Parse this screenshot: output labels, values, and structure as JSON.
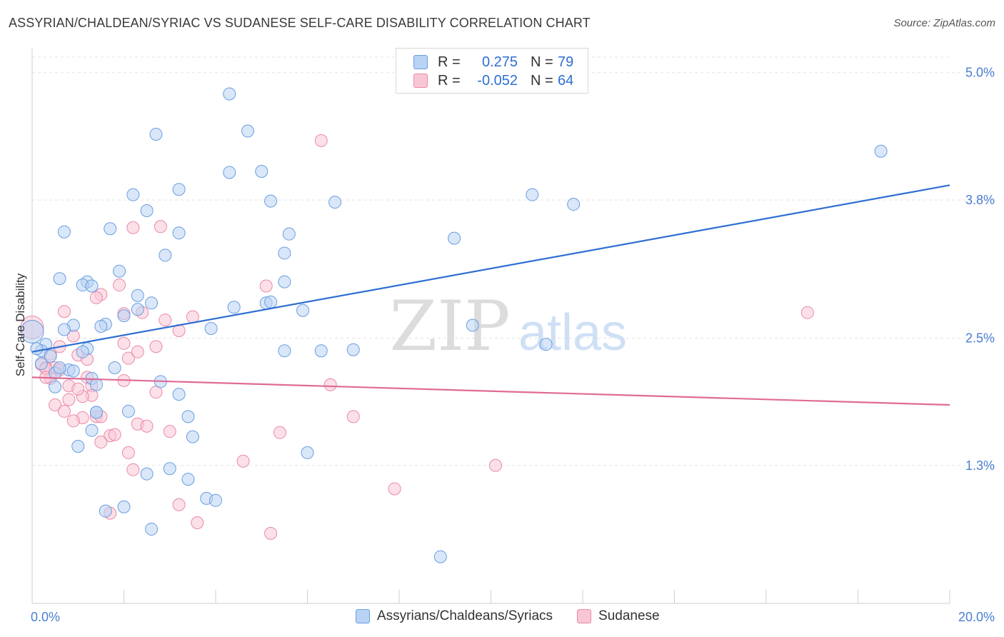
{
  "title": "ASSYRIAN/CHALDEAN/SYRIAC VS SUDANESE SELF-CARE DISABILITY CORRELATION CHART",
  "source": "Source: ZipAtlas.com",
  "watermark": {
    "zip": "ZIP",
    "atlas": "atlas"
  },
  "legend": {
    "r_label": "R =",
    "n_label": "N =",
    "blue": {
      "r": "0.275",
      "n": "79"
    },
    "pink": {
      "r": "-0.052",
      "n": "64"
    }
  },
  "colors": {
    "blue_fill": "#b9d3f4",
    "blue_stroke": "#6a9ee0",
    "blue_line": "#2f6fd1",
    "pink_fill": "#f9c6d5",
    "pink_stroke": "#e98aa8",
    "pink_line": "#e06b95",
    "tick_text": "#4a7fd0"
  },
  "chart_data": {
    "type": "scatter",
    "title": "ASSYRIAN/CHALDEAN/SYRIAC VS SUDANESE SELF-CARE DISABILITY CORRELATION CHART",
    "xlabel": "",
    "ylabel": "Self-Care Disability",
    "xlim": [
      0,
      20
    ],
    "ylim": [
      0.0,
      5.2
    ],
    "x_tick_labels": [
      "0.0%",
      "20.0%"
    ],
    "y_ticks": [
      1.3,
      2.5,
      3.8,
      5.0
    ],
    "y_tick_labels": [
      "1.3%",
      "2.5%",
      "3.8%",
      "5.0%"
    ],
    "grid": true,
    "legend_position": "top-center",
    "series": [
      {
        "name": "Assyrians/Chaldeans/Syriacs",
        "r": 0.275,
        "n": 79,
        "trend": {
          "x": [
            0,
            20
          ],
          "y": [
            2.37,
            3.94
          ]
        },
        "points": [
          [
            4.3,
            4.8
          ],
          [
            4.7,
            4.45
          ],
          [
            2.7,
            4.42
          ],
          [
            4.3,
            4.06
          ],
          [
            5.0,
            4.07
          ],
          [
            18.5,
            4.26
          ],
          [
            2.2,
            3.85
          ],
          [
            3.2,
            3.9
          ],
          [
            5.2,
            3.79
          ],
          [
            6.6,
            3.78
          ],
          [
            10.9,
            3.85
          ],
          [
            11.8,
            3.76
          ],
          [
            2.5,
            3.7
          ],
          [
            1.7,
            3.53
          ],
          [
            0.7,
            3.5
          ],
          [
            3.2,
            3.49
          ],
          [
            5.6,
            3.48
          ],
          [
            9.2,
            3.44
          ],
          [
            2.9,
            3.28
          ],
          [
            5.5,
            3.3
          ],
          [
            1.9,
            3.13
          ],
          [
            0.6,
            3.06
          ],
          [
            1.2,
            3.03
          ],
          [
            1.1,
            3.0
          ],
          [
            5.5,
            3.03
          ],
          [
            2.3,
            2.9
          ],
          [
            1.3,
            2.99
          ],
          [
            2.6,
            2.83
          ],
          [
            5.1,
            2.83
          ],
          [
            5.2,
            2.84
          ],
          [
            2.3,
            2.77
          ],
          [
            4.4,
            2.79
          ],
          [
            5.9,
            2.76
          ],
          [
            2.0,
            2.71
          ],
          [
            0.9,
            2.62
          ],
          [
            1.6,
            2.63
          ],
          [
            1.5,
            2.61
          ],
          [
            3.9,
            2.59
          ],
          [
            0.7,
            2.58
          ],
          [
            9.6,
            2.62
          ],
          [
            0.3,
            2.44
          ],
          [
            1.2,
            2.4
          ],
          [
            0.2,
            2.38
          ],
          [
            1.1,
            2.37
          ],
          [
            5.5,
            2.38
          ],
          [
            6.3,
            2.38
          ],
          [
            7.0,
            2.39
          ],
          [
            11.2,
            2.44
          ],
          [
            0.4,
            2.33
          ],
          [
            0.1,
            2.4
          ],
          [
            1.8,
            2.22
          ],
          [
            0.5,
            2.17
          ],
          [
            0.8,
            2.2
          ],
          [
            0.9,
            2.19
          ],
          [
            1.3,
            2.12
          ],
          [
            2.8,
            2.09
          ],
          [
            0.5,
            2.04
          ],
          [
            1.4,
            2.06
          ],
          [
            3.2,
            1.97
          ],
          [
            1.4,
            1.8
          ],
          [
            2.1,
            1.81
          ],
          [
            3.4,
            1.76
          ],
          [
            1.3,
            1.63
          ],
          [
            3.5,
            1.57
          ],
          [
            1.0,
            1.48
          ],
          [
            6.0,
            1.42
          ],
          [
            2.5,
            1.22
          ],
          [
            3.0,
            1.27
          ],
          [
            3.4,
            1.17
          ],
          [
            3.8,
            0.99
          ],
          [
            4.0,
            0.97
          ],
          [
            2.0,
            0.91
          ],
          [
            1.6,
            0.87
          ],
          [
            2.6,
            0.7
          ],
          [
            8.9,
            0.44
          ],
          [
            0.0,
            2.56
          ],
          [
            0.2,
            2.26
          ],
          [
            0.6,
            2.22
          ],
          [
            1.4,
            1.8
          ]
        ]
      },
      {
        "name": "Sudanese",
        "r": -0.052,
        "n": 64,
        "trend": {
          "x": [
            0,
            20
          ],
          "y": [
            2.13,
            1.87
          ]
        },
        "points": [
          [
            6.3,
            4.36
          ],
          [
            2.2,
            3.54
          ],
          [
            2.8,
            3.55
          ],
          [
            1.9,
            3.0
          ],
          [
            5.1,
            2.99
          ],
          [
            1.5,
            2.91
          ],
          [
            1.4,
            2.88
          ],
          [
            0.7,
            2.75
          ],
          [
            2.0,
            2.73
          ],
          [
            2.4,
            2.74
          ],
          [
            3.5,
            2.7
          ],
          [
            2.9,
            2.67
          ],
          [
            16.9,
            2.74
          ],
          [
            0.9,
            2.52
          ],
          [
            3.2,
            2.57
          ],
          [
            0.6,
            2.42
          ],
          [
            2.0,
            2.45
          ],
          [
            2.7,
            2.42
          ],
          [
            0.4,
            2.35
          ],
          [
            1.0,
            2.34
          ],
          [
            2.1,
            2.31
          ],
          [
            2.3,
            2.37
          ],
          [
            1.2,
            2.3
          ],
          [
            0.2,
            2.25
          ],
          [
            0.3,
            2.22
          ],
          [
            0.5,
            2.22
          ],
          [
            0.4,
            2.12
          ],
          [
            0.8,
            2.05
          ],
          [
            1.2,
            2.13
          ],
          [
            1.3,
            2.05
          ],
          [
            1.3,
            1.96
          ],
          [
            6.5,
            2.06
          ],
          [
            0.5,
            1.87
          ],
          [
            0.8,
            1.92
          ],
          [
            1.1,
            1.95
          ],
          [
            2.7,
            1.99
          ],
          [
            0.7,
            1.81
          ],
          [
            1.1,
            1.75
          ],
          [
            1.4,
            1.76
          ],
          [
            1.5,
            1.76
          ],
          [
            7.0,
            1.76
          ],
          [
            0.9,
            1.72
          ],
          [
            2.3,
            1.69
          ],
          [
            2.5,
            1.67
          ],
          [
            1.7,
            1.58
          ],
          [
            1.8,
            1.59
          ],
          [
            3.0,
            1.62
          ],
          [
            5.4,
            1.61
          ],
          [
            1.5,
            1.52
          ],
          [
            2.1,
            1.42
          ],
          [
            4.6,
            1.34
          ],
          [
            10.1,
            1.3
          ],
          [
            2.2,
            1.26
          ],
          [
            7.9,
            1.08
          ],
          [
            3.2,
            0.93
          ],
          [
            1.7,
            0.85
          ],
          [
            3.6,
            0.76
          ],
          [
            5.2,
            0.66
          ],
          [
            0.0,
            2.6
          ],
          [
            0.3,
            2.21
          ],
          [
            0.6,
            2.2
          ],
          [
            1.0,
            2.02
          ],
          [
            2.0,
            2.1
          ],
          [
            0.3,
            2.13
          ]
        ]
      }
    ]
  },
  "bottom_legend": [
    "Assyrians/Chaldeans/Syriacs",
    "Sudanese"
  ]
}
